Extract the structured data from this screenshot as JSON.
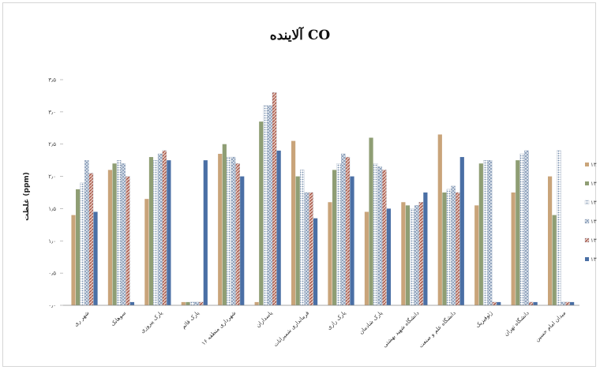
{
  "chart_data": {
    "type": "bar",
    "title": "آلاینده CO",
    "ylabel": "غلظت (ppm)",
    "xlabel": "",
    "ylim": [
      0,
      3.5
    ],
    "yticks": [
      0,
      0.5,
      1,
      1.5,
      2,
      2.5,
      3,
      3.5
    ],
    "ytick_labels": [
      "۰٫۰",
      "۰٫۵",
      "۱٫۰",
      "۱٫۵",
      "۲٫۰",
      "۲٫۵",
      "۳٫۰",
      "۳٫۵"
    ],
    "grid": false,
    "legend_position": "right",
    "categories": [
      "شهر ری ",
      "سوهانک",
      "پارک پیروزی",
      "پارک قائم",
      "شهرداری منطقه ۱۶",
      "پاسداران",
      "فرمانداری شمیرانات",
      "پارک رازی",
      "پارک شادمان",
      "دانشگاه شهید بهشتی",
      "دانشگاه علم و صنعت",
      "ژئوفیزیک",
      "دانشگاه تهران",
      "میدان امام حسین"
    ],
    "series": [
      {
        "name": "۱۳۸۹",
        "color": "#c9a47a",
        "pattern": "solid",
        "values": [
          1.4,
          2.1,
          1.65,
          0.05,
          2.35,
          0.05,
          2.55,
          1.6,
          1.45,
          1.6,
          2.65,
          1.55,
          1.75,
          2.0
        ]
      },
      {
        "name": "۱۳۹۰",
        "color": "#8f9e74",
        "pattern": "solid",
        "values": [
          1.8,
          2.2,
          2.3,
          0.05,
          2.5,
          2.85,
          2.0,
          2.1,
          2.6,
          1.55,
          1.75,
          2.2,
          2.25,
          1.4
        ]
      },
      {
        "name": "۱۳۹۱",
        "color": "#c9d3df",
        "pattern": "dots",
        "values": [
          1.9,
          2.25,
          2.25,
          0.05,
          2.3,
          3.1,
          2.1,
          2.2,
          2.2,
          1.5,
          1.8,
          2.25,
          2.35,
          2.4
        ]
      },
      {
        "name": "۱۳۹۲",
        "color": "#a9b6c9",
        "pattern": "cross",
        "values": [
          2.25,
          2.2,
          2.35,
          0.05,
          2.3,
          3.1,
          1.75,
          2.35,
          2.15,
          1.55,
          1.85,
          2.25,
          2.4,
          0.05
        ]
      },
      {
        "name": "۱۳۹۳",
        "color": "#b05a4c",
        "pattern": "diag",
        "values": [
          2.05,
          2.0,
          2.4,
          0.05,
          2.2,
          3.3,
          1.75,
          2.3,
          2.1,
          1.6,
          1.75,
          0.05,
          0.05,
          0.05
        ]
      },
      {
        "name": "۱۳۹۴",
        "color": "#4a6fa5",
        "pattern": "solid",
        "values": [
          1.45,
          0.05,
          2.25,
          2.25,
          2.0,
          2.4,
          1.35,
          2.0,
          1.5,
          1.75,
          2.3,
          0.05,
          0.05,
          0.05
        ]
      }
    ]
  }
}
